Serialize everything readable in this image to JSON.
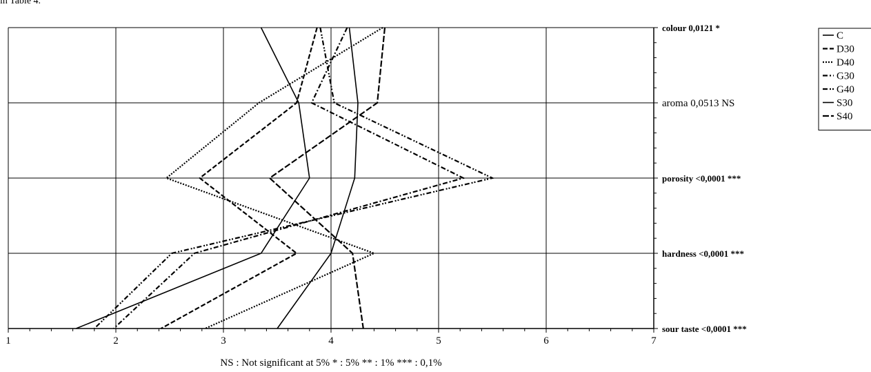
{
  "top_fragment": "in Table 4.",
  "footnote": "NS : Not significant at 5%   * : 5%   ** : 1%   *** : 0,1%",
  "chart_data": {
    "type": "line",
    "orientation": "horizontal-profile",
    "title": "",
    "xlim": [
      1,
      7
    ],
    "x_ticks": [
      "1",
      "2",
      "3",
      "4",
      "5",
      "6",
      "7"
    ],
    "categories": [
      {
        "label": "colour 0,0121 *",
        "bold": true
      },
      {
        "label": "aroma 0,0513 NS",
        "bold": false
      },
      {
        "label": "porosity <0,0001 ***",
        "bold": true
      },
      {
        "label": "hardness <0,0001 ***",
        "bold": true
      },
      {
        "label": "sour taste <0,0001 ***",
        "bold": true
      }
    ],
    "grid": true,
    "legend_position": "top-right",
    "series": [
      {
        "name": "C",
        "dash": "solid",
        "values": [
          3.35,
          3.7,
          3.8,
          3.35,
          1.63
        ]
      },
      {
        "name": "D30",
        "dash": "dash",
        "values": [
          3.87,
          3.68,
          2.78,
          3.68,
          2.42
        ]
      },
      {
        "name": "D40",
        "dash": "dot",
        "values": [
          4.48,
          3.33,
          2.47,
          4.4,
          2.83
        ]
      },
      {
        "name": "G30",
        "dash": "dashdot",
        "values": [
          4.15,
          3.82,
          5.23,
          2.73,
          1.98
        ]
      },
      {
        "name": "G40",
        "dash": "dashdotdot",
        "values": [
          3.9,
          4.03,
          5.5,
          2.52,
          1.8
        ]
      },
      {
        "name": "S30",
        "dash": "solid",
        "values": [
          4.17,
          4.25,
          4.22,
          4.0,
          3.5
        ]
      },
      {
        "name": "S40",
        "dash": "longdash",
        "values": [
          4.5,
          4.43,
          3.43,
          4.2,
          4.3
        ]
      }
    ]
  }
}
